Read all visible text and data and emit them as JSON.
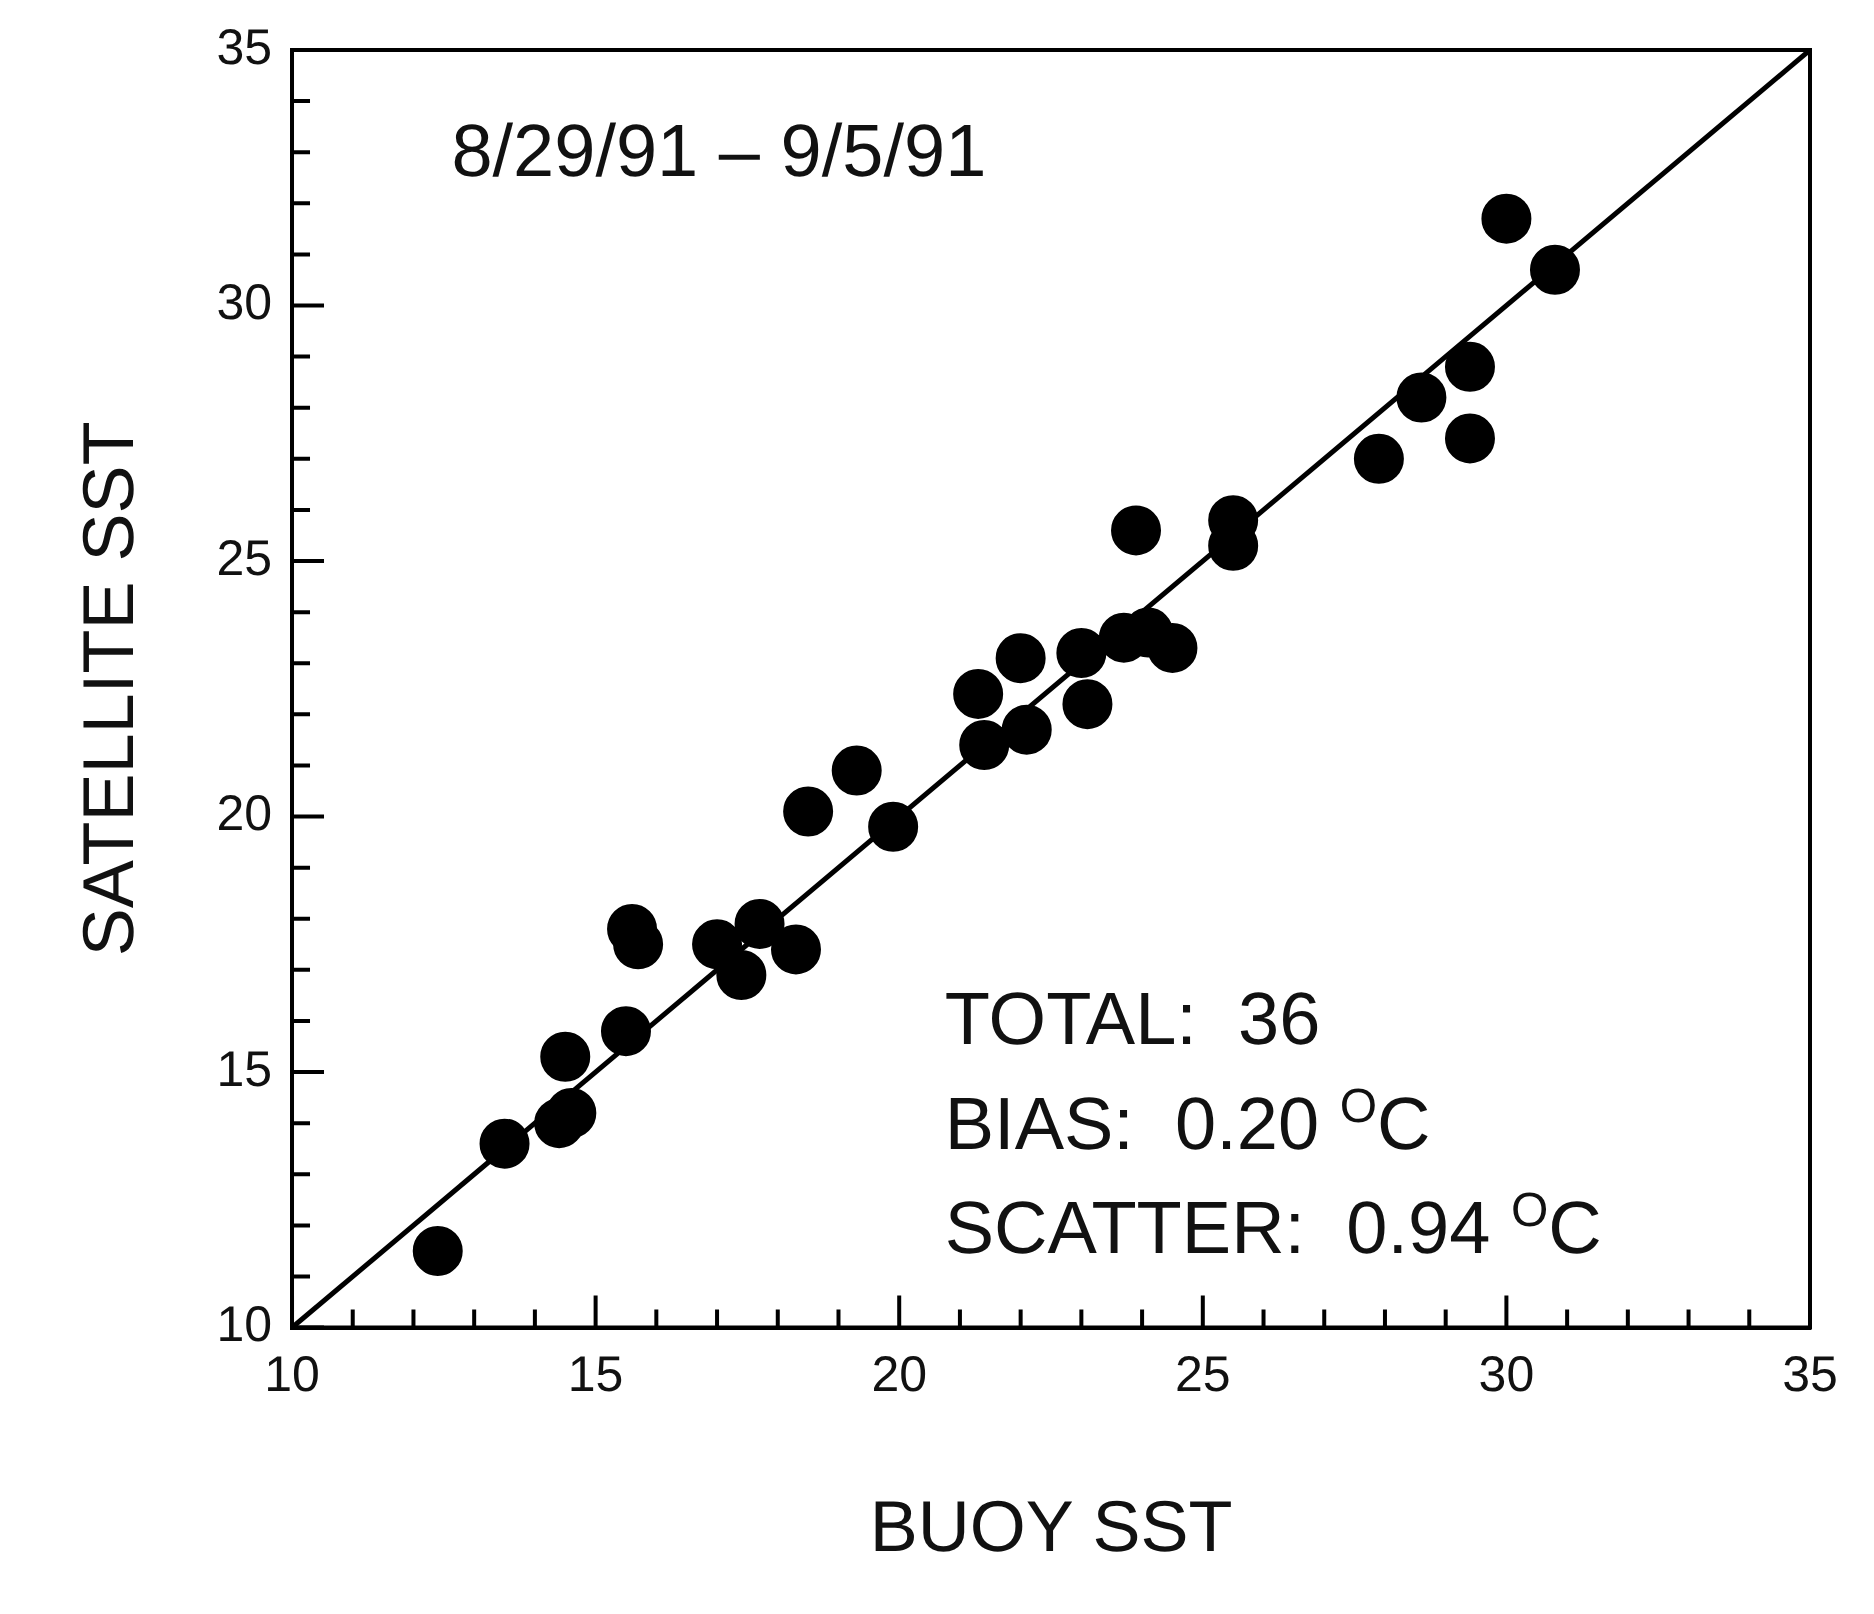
{
  "chart_data": {
    "type": "scatter",
    "xlabel": "BUOY SST",
    "ylabel": "SATELLITE SST",
    "xlim": [
      10,
      35
    ],
    "ylim": [
      10,
      35
    ],
    "xticks": [
      10,
      {
        "value": 11,
        "label": null
      },
      {
        "value": 12,
        "label": null
      },
      {
        "value": 13,
        "label": null
      },
      {
        "value": 14,
        "label": null
      },
      15,
      {
        "value": 16,
        "label": null
      },
      {
        "value": 17,
        "label": null
      },
      {
        "value": 18,
        "label": null
      },
      {
        "value": 19,
        "label": null
      },
      20,
      {
        "value": 21,
        "label": null
      },
      {
        "value": 22,
        "label": null
      },
      {
        "value": 23,
        "label": null
      },
      {
        "value": 24,
        "label": null
      },
      25,
      {
        "value": 26,
        "label": null
      },
      {
        "value": 27,
        "label": null
      },
      {
        "value": 28,
        "label": null
      },
      {
        "value": 29,
        "label": null
      },
      30,
      {
        "value": 31,
        "label": null
      },
      {
        "value": 32,
        "label": null
      },
      {
        "value": 33,
        "label": null
      },
      {
        "value": 34,
        "label": null
      },
      35
    ],
    "yticks": [
      10,
      {
        "value": 11,
        "label": null
      },
      {
        "value": 12,
        "label": null
      },
      {
        "value": 13,
        "label": null
      },
      {
        "value": 14,
        "label": null
      },
      15,
      {
        "value": 16,
        "label": null
      },
      {
        "value": 17,
        "label": null
      },
      {
        "value": 18,
        "label": null
      },
      {
        "value": 19,
        "label": null
      },
      20,
      {
        "value": 21,
        "label": null
      },
      {
        "value": 22,
        "label": null
      },
      {
        "value": 23,
        "label": null
      },
      {
        "value": 24,
        "label": null
      },
      25,
      {
        "value": 26,
        "label": null
      },
      {
        "value": 27,
        "label": null
      },
      {
        "value": 28,
        "label": null
      },
      {
        "value": 29,
        "label": null
      },
      30,
      {
        "value": 31,
        "label": null
      },
      {
        "value": 32,
        "label": null
      },
      {
        "value": 33,
        "label": null
      },
      {
        "value": 34,
        "label": null
      },
      35
    ],
    "grid": false,
    "legend": false,
    "marker": "circle",
    "series": [
      {
        "color": "#000000",
        "x": [
          12.4,
          13.5,
          14.4,
          14.6,
          14.5,
          15.5,
          15.6,
          15.7,
          17.0,
          17.4,
          17.7,
          18.3,
          18.5,
          19.3,
          19.9,
          21.3,
          21.4,
          22.1,
          22.0,
          23.1,
          23.0,
          23.7,
          24.1,
          24.5,
          23.9,
          25.5,
          25.5,
          27.9,
          28.6,
          29.4,
          29.4,
          30.0,
          30.8
        ],
        "values": [
          11.5,
          13.6,
          14.0,
          14.2,
          15.3,
          15.8,
          17.8,
          17.5,
          17.5,
          16.9,
          17.9,
          17.4,
          20.1,
          20.9,
          19.8,
          22.4,
          21.4,
          21.7,
          23.1,
          22.2,
          23.2,
          23.5,
          23.6,
          23.3,
          25.6,
          25.8,
          25.3,
          27.0,
          28.2,
          28.8,
          27.4,
          31.7,
          30.7
        ]
      },
      {
        "type": "line",
        "color": "#000000",
        "line_style": "solid",
        "marker": "none",
        "x": [
          10,
          35
        ],
        "values": [
          10,
          35
        ]
      }
    ],
    "annotations": [
      "8/29/91 – 9/5/91",
      "TOTAL:  36",
      "BIAS:  0.20 $^{O}$C",
      "SCATTER:  0.94 $^{O}$C"
    ]
  }
}
